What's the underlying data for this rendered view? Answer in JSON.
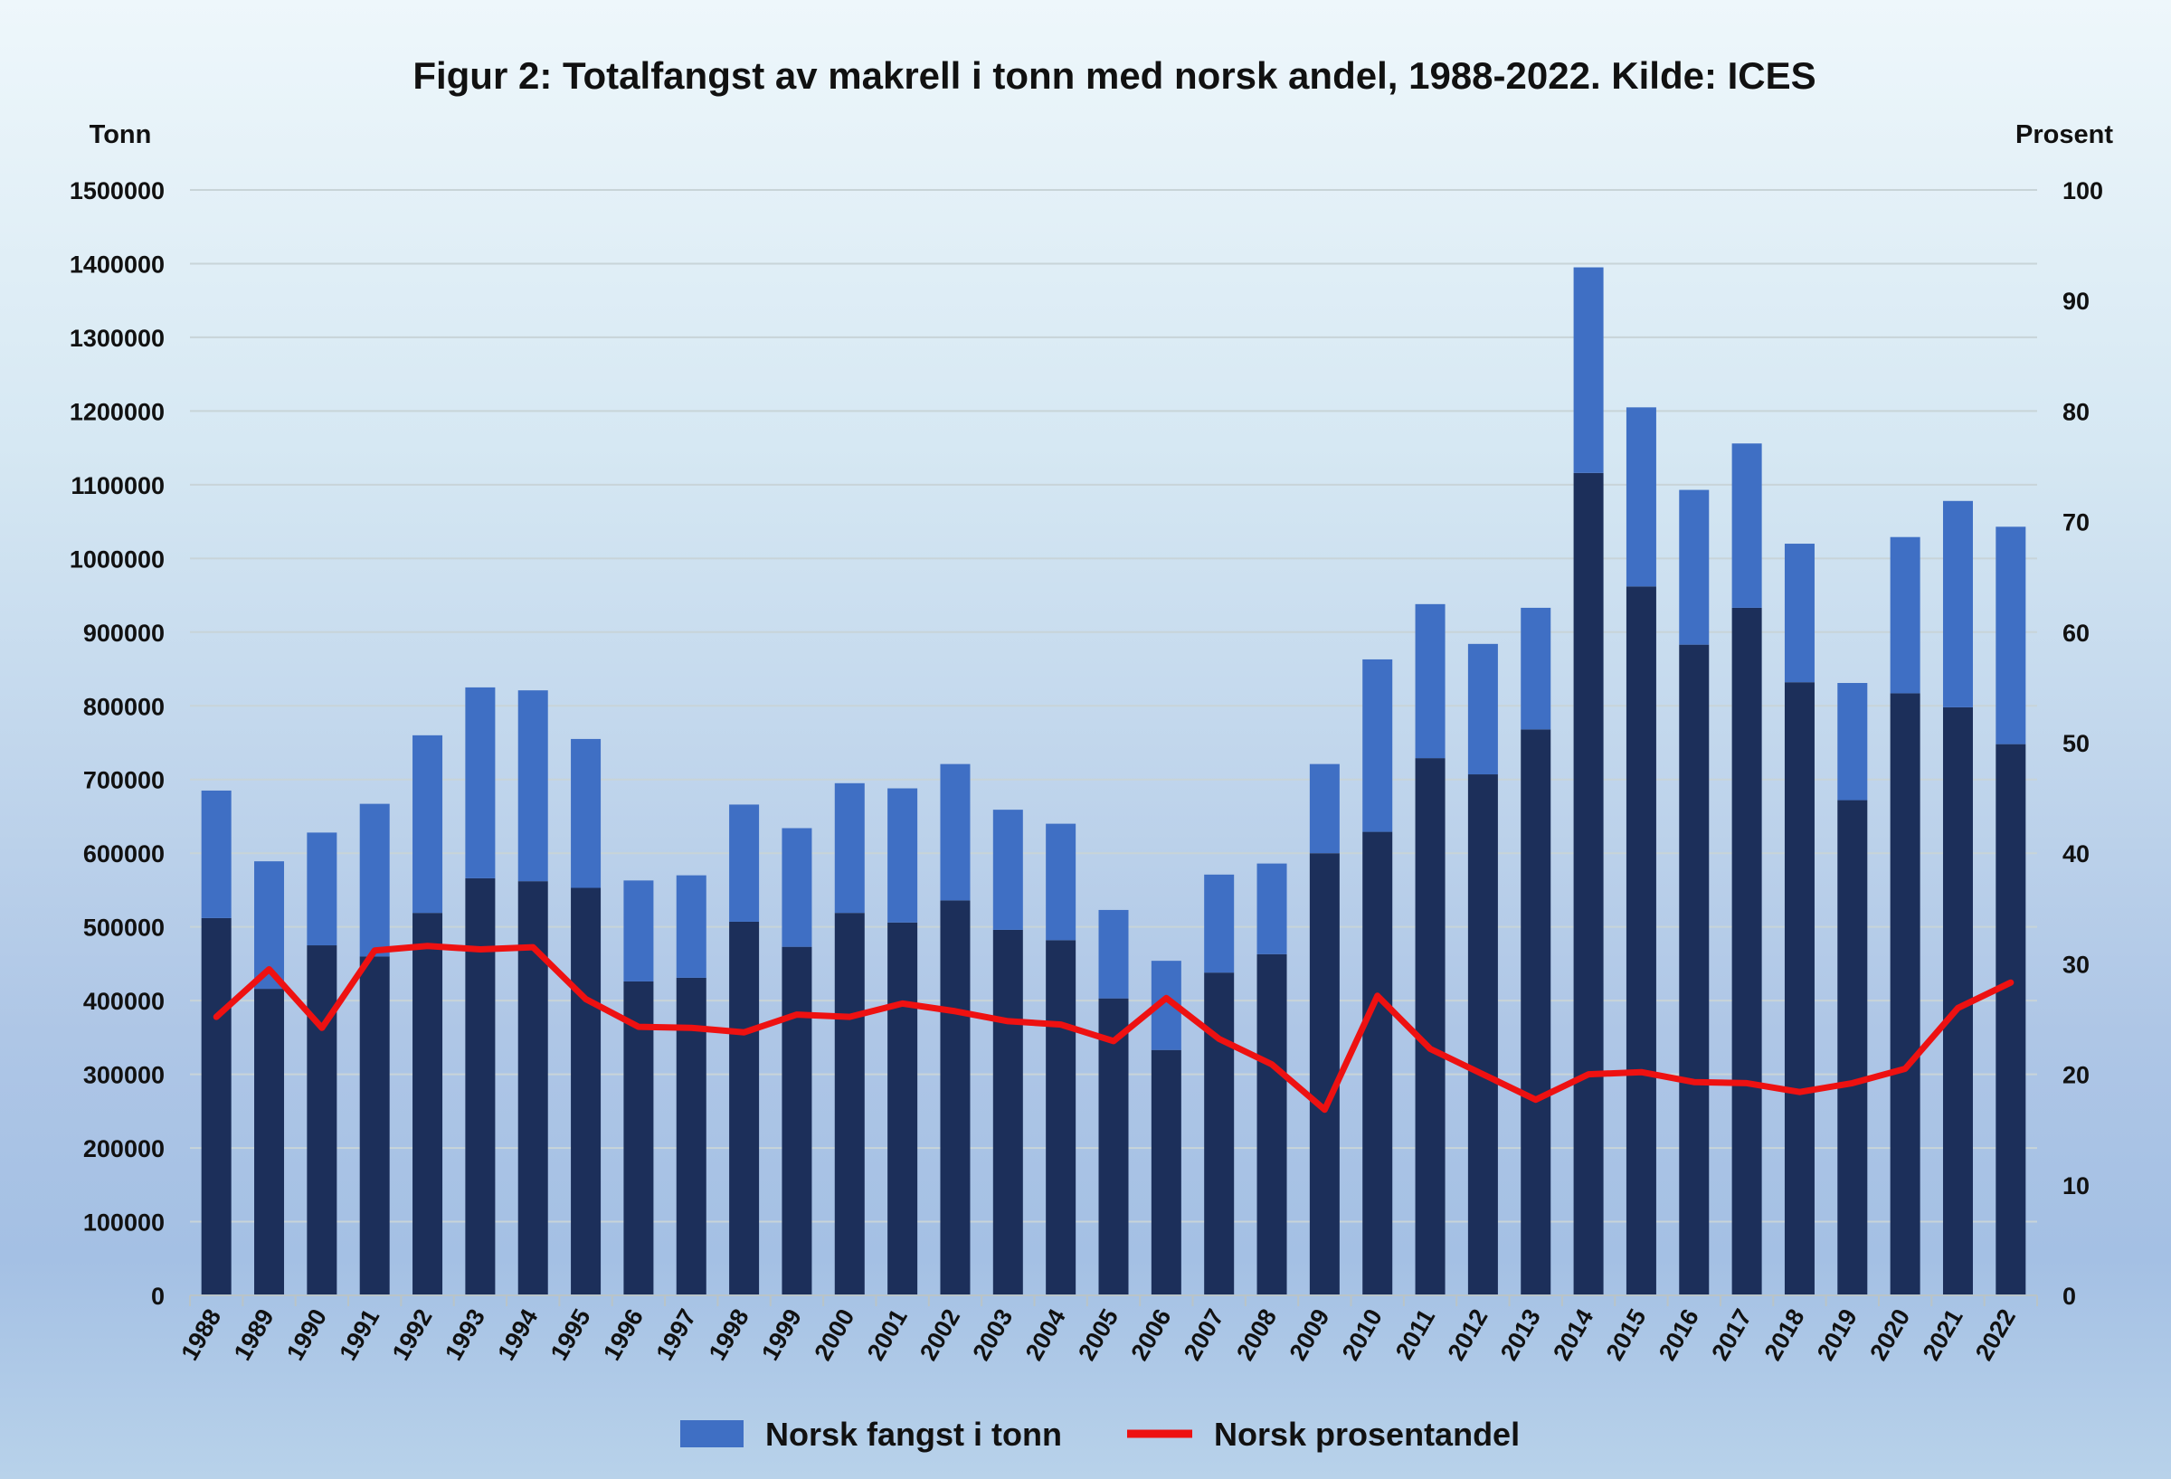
{
  "chart_data": {
    "type": "bar",
    "title": "Figur 2: Totalfangst av makrell i tonn med norsk andel, 1988-2022. Kilde: ICES",
    "ylabel_left": "Tonn",
    "ylabel_right": "Prosent",
    "ylim_left": [
      0,
      1500000
    ],
    "ylim_right": [
      0,
      100
    ],
    "yticks_left": [
      "0",
      "100000",
      "200000",
      "300000",
      "400000",
      "500000",
      "600000",
      "700000",
      "800000",
      "900000",
      "1000000",
      "1100000",
      "1200000",
      "1300000",
      "1400000",
      "1500000"
    ],
    "yticks_right": [
      "0",
      "10",
      "20",
      "30",
      "40",
      "50",
      "60",
      "70",
      "80",
      "90",
      "100"
    ],
    "grid": true,
    "legend_position": "bottom",
    "categories": [
      "1988",
      "1989",
      "1990",
      "1991",
      "1992",
      "1993",
      "1994",
      "1995",
      "1996",
      "1997",
      "1998",
      "1999",
      "2000",
      "2001",
      "2002",
      "2003",
      "2004",
      "2005",
      "2006",
      "2007",
      "2008",
      "2009",
      "2010",
      "2011",
      "2012",
      "2013",
      "2014",
      "2015",
      "2016",
      "2017",
      "2018",
      "2019",
      "2020",
      "2021",
      "2022"
    ],
    "series": [
      {
        "role": "total (dark stacked base)",
        "color": "#1c2f5a",
        "values": [
          512000,
          416000,
          475000,
          460000,
          519000,
          566000,
          562000,
          553000,
          426000,
          431000,
          507000,
          473000,
          519000,
          506000,
          536000,
          496000,
          482000,
          403000,
          333000,
          438000,
          463000,
          600000,
          629000,
          729000,
          707000,
          768000,
          1116000,
          962000,
          883000,
          933000,
          832000,
          672000,
          817000,
          798000,
          748000
        ]
      },
      {
        "name": "Norsk fangst i tonn",
        "color": "#3f6fc4",
        "values": [
          173000,
          173000,
          153000,
          207000,
          241000,
          259000,
          259000,
          202000,
          137000,
          139000,
          159000,
          161000,
          176000,
          182000,
          185000,
          163000,
          158000,
          120000,
          121000,
          133000,
          123000,
          121000,
          234000,
          209000,
          177000,
          165000,
          279000,
          243000,
          210000,
          223000,
          188000,
          159000,
          212000,
          280000,
          295000
        ]
      },
      {
        "name": "Norsk prosentandel",
        "type": "line",
        "axis": "right",
        "color": "#ee1111",
        "values": [
          25.2,
          29.5,
          24.2,
          31.2,
          31.6,
          31.3,
          31.5,
          26.8,
          24.3,
          24.2,
          23.8,
          25.4,
          25.2,
          26.4,
          25.7,
          24.8,
          24.5,
          23.0,
          26.9,
          23.2,
          20.9,
          16.8,
          27.1,
          22.3,
          20.0,
          17.7,
          20.0,
          20.2,
          19.3,
          19.2,
          18.4,
          19.2,
          20.5,
          26.0,
          28.3
        ]
      }
    ]
  }
}
